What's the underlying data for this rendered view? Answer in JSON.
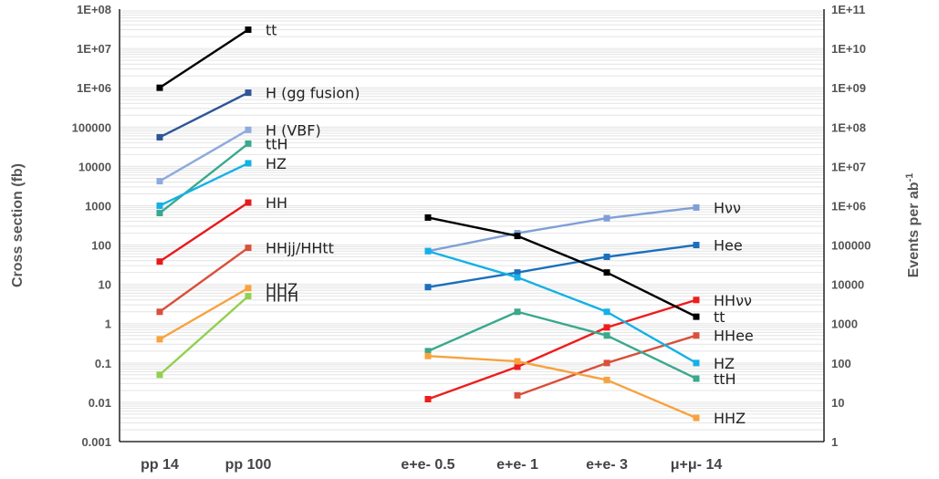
{
  "chart_data": {
    "type": "line",
    "title": "",
    "ylabel": "Cross section (fb)",
    "y2label": "Events per ab",
    "y2label_sup": "-1",
    "yscale": "log",
    "ylim": [
      0.001,
      100000000
    ],
    "y2lim": [
      1,
      100000000000
    ],
    "y_ticks": [
      "1E+08",
      "1E+07",
      "1E+06",
      "100000",
      "10000",
      "1000",
      "100",
      "10",
      "1",
      "0.1",
      "0.01",
      "0.001"
    ],
    "y2_ticks": [
      "1E+11",
      "1E+10",
      "1E+09",
      "1E+08",
      "1E+07",
      "1E+06",
      "100000",
      "10000",
      "1000",
      "100",
      "10",
      "1"
    ],
    "grid": true,
    "categories": [
      "pp 14",
      "pp 100",
      "e+e- 0.5",
      "e+e- 1",
      "e+e- 3",
      "μ+μ- 14"
    ],
    "series": [
      {
        "name": "tt",
        "color": "#000000",
        "values": [
          1000000,
          30000000,
          null,
          null,
          null,
          null
        ]
      },
      {
        "name": "H (gg fusion)",
        "color": "#2f5597",
        "values": [
          55000,
          750000,
          null,
          null,
          null,
          null
        ]
      },
      {
        "name": "H (VBF)",
        "color": "#8faadc",
        "values": [
          4200,
          85000,
          null,
          null,
          null,
          null
        ]
      },
      {
        "name": "ttH",
        "color": "#3aa88c",
        "values": [
          650,
          38000,
          null,
          null,
          null,
          null
        ]
      },
      {
        "name": "HZ",
        "color": "#13b1e6",
        "values": [
          1000,
          12000,
          null,
          null,
          null,
          null
        ]
      },
      {
        "name": "HH",
        "color": "#e8191a",
        "values": [
          38,
          1200,
          null,
          null,
          null,
          null
        ]
      },
      {
        "name": "HHjj/HHtt",
        "color": "#d9503c",
        "values": [
          2,
          85,
          null,
          null,
          null,
          null
        ]
      },
      {
        "name": "HHZ",
        "color": "#f7a23e",
        "values": [
          0.4,
          8,
          null,
          null,
          null,
          null
        ]
      },
      {
        "name": "HHH",
        "color": "#92d050",
        "values": [
          0.05,
          5,
          null,
          null,
          null,
          null
        ]
      },
      {
        "name": "Hνν",
        "color": "#7f9fd6",
        "values": [
          null,
          null,
          70,
          200,
          480,
          900
        ]
      },
      {
        "name": "Hee",
        "color": "#1b6fbc",
        "values": [
          null,
          null,
          8.5,
          20,
          50,
          100
        ]
      },
      {
        "name": "HHνν",
        "color": "#ee1c1c",
        "values": [
          null,
          null,
          0.012,
          0.08,
          0.8,
          4
        ]
      },
      {
        "name": "tt",
        "color": "#000000",
        "values": [
          null,
          null,
          500,
          170,
          20,
          1.5
        ]
      },
      {
        "name": "HHee",
        "color": "#d9503c",
        "values": [
          null,
          null,
          null,
          0.015,
          0.1,
          0.5
        ]
      },
      {
        "name": "HZ",
        "color": "#13b1e6",
        "values": [
          null,
          null,
          70,
          15,
          2,
          0.1
        ]
      },
      {
        "name": "ttH",
        "color": "#3aa88c",
        "values": [
          null,
          null,
          0.2,
          2,
          0.5,
          0.04
        ]
      },
      {
        "name": "HHZ",
        "color": "#f7a23e",
        "values": [
          null,
          null,
          0.15,
          0.11,
          0.037,
          0.004
        ]
      }
    ]
  }
}
